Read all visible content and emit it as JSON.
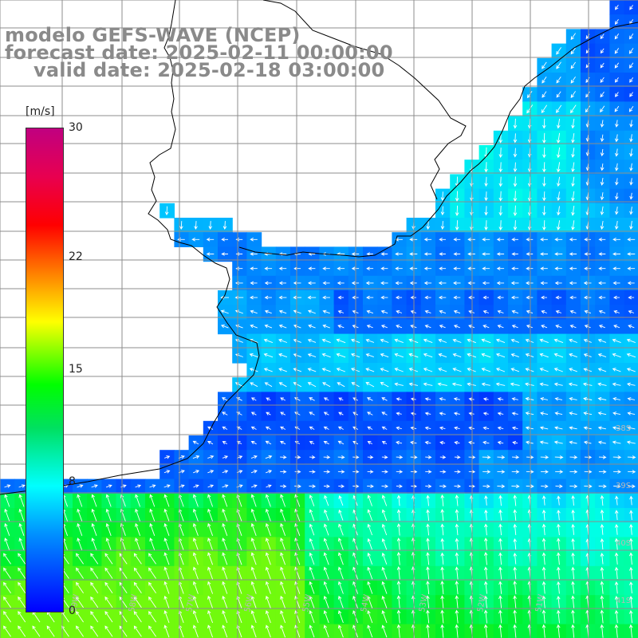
{
  "title": {
    "line1": "modelo GEFS-WAVE (NCEP)",
    "line2": "forecast date: 2025-02-11 00:00:00",
    "line3": "valid date: 2025-02-18 03:00:00"
  },
  "colorbar": {
    "units": "[m/s]",
    "min": 0,
    "max": 30,
    "ticks": [
      {
        "value": 30,
        "label": "30"
      },
      {
        "value": 22,
        "label": "22"
      },
      {
        "value": 15,
        "label": "15"
      },
      {
        "value": 8,
        "label": "8"
      },
      {
        "value": 0,
        "label": "0"
      }
    ]
  },
  "map": {
    "lat_labels": [
      "38S",
      "39S",
      "40S",
      "41S"
    ],
    "lon_labels": [
      "59W",
      "58W",
      "57W",
      "56W",
      "55W",
      "54W",
      "53W",
      "52W",
      "51W"
    ],
    "variable": "wind speed and direction",
    "colors": {
      "land": "#ffffff",
      "grid": "#8c8c8c",
      "coast": "#000000",
      "arrows": "#ffffff"
    }
  }
}
